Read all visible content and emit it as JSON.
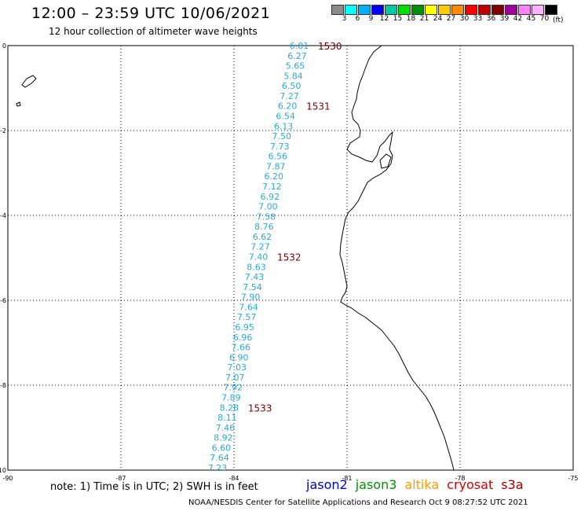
{
  "header": {
    "title": "12:00 – 23:59 UTC 10/06/2021",
    "subtitle": "12 hour collection of altimeter wave heights"
  },
  "legend": {
    "colors": [
      "#8a8a8a",
      "#00ffff",
      "#00b0ff",
      "#0000ff",
      "#00c8a0",
      "#00e000",
      "#009000",
      "#ffff00",
      "#ffc800",
      "#ff8c00",
      "#ff0000",
      "#c00000",
      "#800000",
      "#a000a0",
      "#ff80ff",
      "#ffb0ff",
      "#000000"
    ],
    "labels": [
      "3",
      "6",
      "9",
      "12",
      "15",
      "18",
      "21",
      "24",
      "27",
      "30",
      "33",
      "36",
      "39",
      "42",
      "45",
      "70"
    ],
    "unit": "(ft)"
  },
  "map": {
    "x_ticks": [
      "-90",
      "-87",
      "-84",
      "-81",
      "-78",
      "-75"
    ],
    "y_ticks": [
      "0",
      "-2",
      "-4",
      "-6",
      "-8",
      "-10"
    ],
    "wave_heights": [
      "6.81",
      "6.27",
      "5.65",
      "5.84",
      "6.50",
      "7.27",
      "6.20",
      "6.54",
      "6.13",
      "7.50",
      "7.73",
      "6.56",
      "7.87",
      "6.20",
      "7.12",
      "6.92",
      "7.00",
      "7.58",
      "8.76",
      "6.62",
      "7.27",
      "7.40",
      "8.63",
      "7.43",
      "7.54",
      "7.90",
      "7.64",
      "7.57",
      "6.95",
      "6.96",
      "7.66",
      "6.90",
      "7.03",
      "7.07",
      "7.92",
      "7.89",
      "8.28",
      "8.11",
      "7.46",
      "8.92",
      "6.60",
      "7.64",
      "7.23"
    ],
    "pass_times": [
      {
        "label": "1530",
        "index": 0
      },
      {
        "label": "1531",
        "index": 6
      },
      {
        "label": "1532",
        "index": 21
      },
      {
        "label": "1533",
        "index": 36
      }
    ]
  },
  "footer": {
    "note": "note:  1) Time is in UTC; 2) SWH is in feet",
    "satellites": [
      {
        "name": "jason2",
        "color": "#0000cc"
      },
      {
        "name": "jason3",
        "color": "#009000"
      },
      {
        "name": "altika",
        "color": "#ff9900"
      },
      {
        "name": "cryosat",
        "color": "#d00000"
      },
      {
        "name": "s3a",
        "color": "#a00000"
      }
    ],
    "credit": "NOAA/NESDIS Center for Satellite Applications and Research     Oct  9 08:27:52 UTC 2021"
  }
}
